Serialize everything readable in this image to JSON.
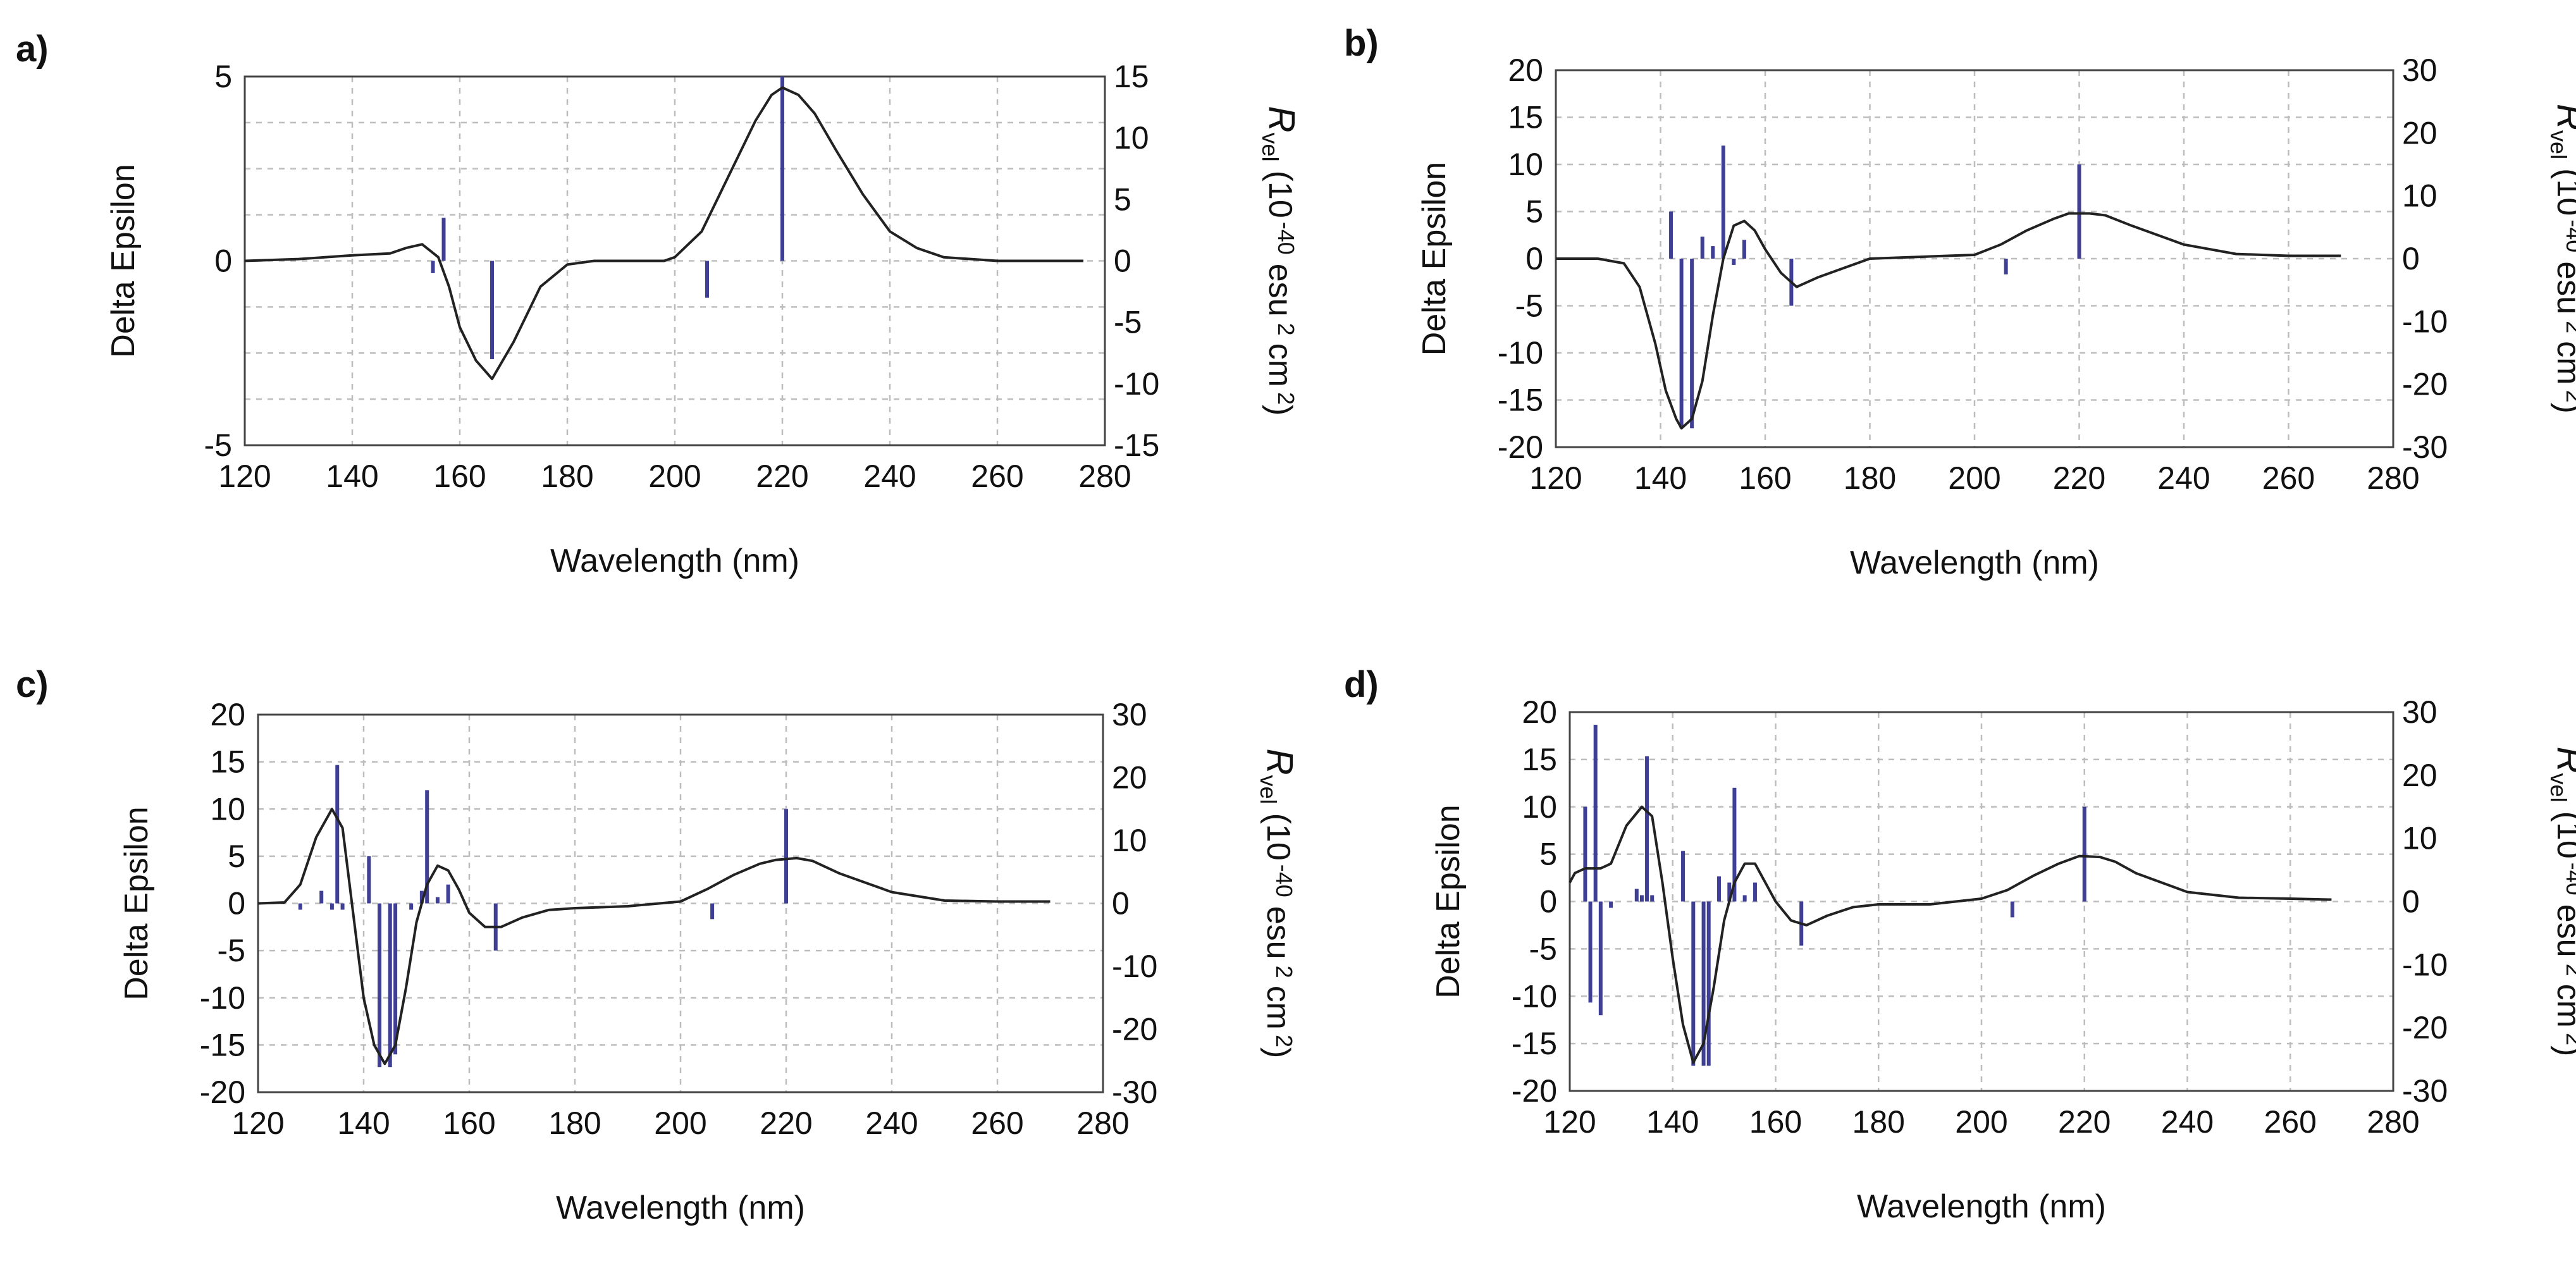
{
  "colors": {
    "curve": "#222222",
    "bars": "#3f3f96",
    "grid": "#bdbdbd",
    "frame": "#444444"
  },
  "panels": [
    {
      "letter": "a)",
      "xlabel": "Wavelength (nm)",
      "ylabel": "Delta Epsilon"
    },
    {
      "letter": "b)",
      "xlabel": "Wavelength (nm)",
      "ylabel": "Delta Epsilon"
    },
    {
      "letter": "c)",
      "xlabel": "Wavelength (nm)",
      "ylabel": "Delta Epsilon"
    },
    {
      "letter": "d)",
      "xlabel": "Wavelength (nm)",
      "ylabel": "Delta Epsilon"
    }
  ],
  "y2label": {
    "r": "R",
    "vel": "vel",
    "unit_a": "(10",
    "exp": "-40",
    "unit_b": "esu",
    "exp2": "2",
    "unit_c": "cm",
    "exp3": "2",
    "unit_d": ")"
  },
  "chart_data": [
    {
      "type": "line",
      "title": "",
      "xlabel": "Wavelength (nm)",
      "ylabel": "Delta Epsilon",
      "y2label": "R vel (10 -40 esu 2 cm 2)",
      "xlim": [
        120,
        280
      ],
      "xticks": [
        120,
        140,
        160,
        180,
        200,
        220,
        240,
        260,
        280
      ],
      "ylim": [
        -5,
        5
      ],
      "yticks": [
        -5,
        0,
        5
      ],
      "y2lim": [
        -15,
        15
      ],
      "y2ticks": [
        -15,
        -10,
        -5,
        0,
        5,
        10,
        15
      ],
      "grid": true,
      "series": [
        {
          "kind": "line",
          "x": [
            120,
            130,
            140,
            147,
            150,
            153,
            156,
            158,
            160,
            163,
            166,
            170,
            175,
            180,
            185,
            190,
            195,
            198,
            200,
            205,
            210,
            215,
            218,
            220,
            223,
            226,
            230,
            235,
            240,
            245,
            250,
            260,
            270,
            276
          ],
          "y": [
            0,
            0.05,
            0.15,
            0.2,
            0.35,
            0.45,
            0.1,
            -0.7,
            -1.8,
            -2.7,
            -3.2,
            -2.2,
            -0.7,
            -0.1,
            0,
            0,
            0,
            0,
            0.1,
            0.8,
            2.3,
            3.8,
            4.5,
            4.7,
            4.5,
            4.0,
            3.0,
            1.8,
            0.8,
            0.35,
            0.1,
            0,
            0,
            0
          ]
        },
        {
          "kind": "bars",
          "x": [
            155,
            157,
            166,
            206,
            220
          ],
          "values": [
            -1,
            3.5,
            -8,
            -3,
            15
          ]
        }
      ]
    },
    {
      "type": "line",
      "title": "",
      "xlabel": "Wavelength (nm)",
      "ylabel": "Delta Epsilon",
      "y2label": "R vel (10 -40 esu 2 cm 2)",
      "xlim": [
        120,
        280
      ],
      "xticks": [
        120,
        140,
        160,
        180,
        200,
        220,
        240,
        260,
        280
      ],
      "ylim": [
        -20,
        20
      ],
      "yticks": [
        -20,
        -15,
        -10,
        -5,
        0,
        5,
        10,
        15,
        20
      ],
      "y2lim": [
        -30,
        30
      ],
      "y2ticks": [
        -30,
        -20,
        -10,
        0,
        10,
        20,
        30
      ],
      "grid": true,
      "series": [
        {
          "kind": "line",
          "x": [
            120,
            128,
            133,
            136,
            139,
            141,
            143,
            144,
            146,
            148,
            150,
            152,
            154,
            156,
            158,
            160,
            163,
            166,
            170,
            175,
            180,
            190,
            200,
            205,
            210,
            215,
            218,
            222,
            225,
            230,
            240,
            250,
            260,
            270
          ],
          "y": [
            0,
            0,
            -0.5,
            -3,
            -9,
            -14,
            -17,
            -18,
            -17,
            -13,
            -6,
            0,
            3.5,
            4,
            3,
            1,
            -1.5,
            -3,
            -2,
            -1,
            0,
            0.2,
            0.4,
            1.5,
            3,
            4.2,
            4.8,
            4.8,
            4.6,
            3.5,
            1.5,
            0.5,
            0.3,
            0.3
          ]
        },
        {
          "kind": "bars",
          "x": [
            142,
            144,
            146,
            148,
            150,
            152,
            154,
            156,
            165,
            206,
            220
          ],
          "values": [
            7.5,
            -27,
            -27,
            3.5,
            2,
            18,
            -1,
            3,
            -7.5,
            -2.5,
            15
          ]
        }
      ]
    },
    {
      "type": "line",
      "title": "",
      "xlabel": "Wavelength (nm)",
      "ylabel": "Delta Epsilon",
      "y2label": "R vel (10 -40 esu 2 cm 2)",
      "xlim": [
        120,
        280
      ],
      "xticks": [
        120,
        140,
        160,
        180,
        200,
        220,
        240,
        260,
        280
      ],
      "ylim": [
        -20,
        20
      ],
      "yticks": [
        -20,
        -15,
        -10,
        -5,
        0,
        5,
        10,
        15,
        20
      ],
      "y2lim": [
        -30,
        30
      ],
      "y2ticks": [
        -30,
        -20,
        -10,
        0,
        10,
        20,
        30
      ],
      "grid": true,
      "series": [
        {
          "kind": "line",
          "x": [
            120,
            125,
            128,
            131,
            134,
            136,
            138,
            140,
            142,
            144,
            146,
            148,
            150,
            152,
            154,
            156,
            158,
            160,
            163,
            166,
            170,
            175,
            180,
            190,
            200,
            205,
            210,
            215,
            218,
            222,
            225,
            230,
            240,
            250,
            260,
            270
          ],
          "y": [
            0,
            0.1,
            2,
            7,
            10,
            8,
            -1,
            -10,
            -15,
            -17,
            -15,
            -9,
            -2,
            2,
            4,
            3.5,
            1.5,
            -1,
            -2.5,
            -2.5,
            -1.5,
            -0.7,
            -0.5,
            -0.3,
            0.2,
            1.5,
            3,
            4.2,
            4.6,
            4.8,
            4.5,
            3.2,
            1.2,
            0.3,
            0.2,
            0.2
          ]
        },
        {
          "kind": "bars",
          "x": [
            128,
            132,
            134,
            135,
            136,
            141,
            143,
            145,
            146,
            149,
            151,
            152,
            154,
            156,
            165,
            206,
            220
          ],
          "values": [
            -1,
            2,
            -1,
            22,
            -1,
            7.5,
            -26,
            -26,
            -24,
            -1,
            2,
            18,
            1,
            3,
            -7.5,
            -2.5,
            15
          ]
        }
      ]
    },
    {
      "type": "line",
      "title": "",
      "xlabel": "Wavelength (nm)",
      "ylabel": "Delta Epsilon",
      "y2label": "R vel (10 -40 esu 2 cm 2)",
      "xlim": [
        120,
        280
      ],
      "xticks": [
        120,
        140,
        160,
        180,
        200,
        220,
        240,
        260,
        280
      ],
      "ylim": [
        -20,
        20
      ],
      "yticks": [
        -20,
        -15,
        -10,
        -5,
        0,
        5,
        10,
        15,
        20
      ],
      "y2lim": [
        -30,
        30
      ],
      "y2ticks": [
        -30,
        -20,
        -10,
        0,
        10,
        20,
        30
      ],
      "grid": true,
      "series": [
        {
          "kind": "line",
          "x": [
            120,
            121,
            123,
            126,
            128,
            131,
            134,
            136,
            138,
            140,
            142,
            144,
            146,
            148,
            150,
            152,
            154,
            156,
            158,
            160,
            163,
            166,
            170,
            175,
            180,
            190,
            200,
            205,
            210,
            215,
            219,
            223,
            226,
            230,
            240,
            250,
            260,
            268
          ],
          "y": [
            2,
            3,
            3.5,
            3.5,
            4,
            8,
            10,
            9,
            2,
            -6,
            -13,
            -17,
            -15,
            -9,
            -2,
            2,
            4,
            4,
            2,
            0,
            -2,
            -2.5,
            -1.5,
            -0.6,
            -0.3,
            -0.3,
            0.3,
            1.2,
            2.7,
            4,
            4.8,
            4.7,
            4.2,
            3,
            1,
            0.4,
            0.3,
            0.2
          ]
        },
        {
          "kind": "bars",
          "x": [
            123,
            124,
            125,
            126,
            128,
            133,
            134,
            135,
            136,
            142,
            144,
            146,
            147,
            149,
            151,
            152,
            154,
            156,
            165,
            206,
            220
          ],
          "values": [
            15,
            -16,
            28,
            -18,
            -1,
            2,
            1,
            23,
            1,
            8,
            -26,
            -26,
            -26,
            4,
            3,
            18,
            1,
            3,
            -7,
            -2.5,
            15
          ]
        }
      ]
    }
  ]
}
